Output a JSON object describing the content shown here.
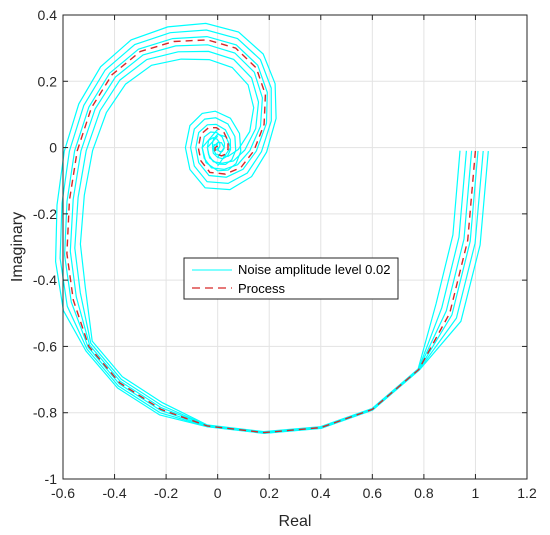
{
  "chart_data": {
    "type": "line",
    "xlabel": "Real",
    "ylabel": "Imaginary",
    "xlim": [
      -0.6,
      1.2
    ],
    "ylim": [
      -1,
      0.4
    ],
    "grid": true,
    "legend_position": "center",
    "xticks": [
      "-0.6",
      "-0.4",
      "-0.2",
      "0",
      "0.2",
      "0.4",
      "0.6",
      "0.8",
      "1",
      "1.2"
    ],
    "yticks": [
      "-1",
      "-0.8",
      "-0.6",
      "-0.4",
      "-0.2",
      "0",
      "0.2",
      "0.4"
    ],
    "series": [
      {
        "name": "Noise amplitude level 0.02",
        "color": "#00FFFF",
        "style": "solid",
        "description_points": "spiral band around the process curve, wider on inner loops",
        "band_offsets": [
          -0.06,
          -0.035,
          -0.015,
          0.01,
          0.03,
          0.05
        ]
      },
      {
        "name": "Process",
        "color": "#D62728",
        "style": "dashed",
        "points": [
          [
            1.0,
            -0.01
          ],
          [
            0.97,
            -0.28
          ],
          [
            0.9,
            -0.5
          ],
          [
            0.78,
            -0.67
          ],
          [
            0.6,
            -0.79
          ],
          [
            0.4,
            -0.845
          ],
          [
            0.18,
            -0.86
          ],
          [
            -0.04,
            -0.84
          ],
          [
            -0.22,
            -0.79
          ],
          [
            -0.38,
            -0.71
          ],
          [
            -0.5,
            -0.6
          ],
          [
            -0.56,
            -0.46
          ],
          [
            -0.585,
            -0.32
          ],
          [
            -0.575,
            -0.16
          ],
          [
            -0.545,
            -0.01
          ],
          [
            -0.49,
            0.12
          ],
          [
            -0.41,
            0.22
          ],
          [
            -0.3,
            0.29
          ],
          [
            -0.17,
            0.32
          ],
          [
            -0.04,
            0.325
          ],
          [
            0.07,
            0.3
          ],
          [
            0.15,
            0.24
          ],
          [
            0.185,
            0.16
          ],
          [
            0.18,
            0.07
          ],
          [
            0.14,
            -0.01
          ],
          [
            0.09,
            -0.06
          ],
          [
            0.03,
            -0.08
          ],
          [
            -0.03,
            -0.075
          ],
          [
            -0.065,
            -0.04
          ],
          [
            -0.075,
            0.0
          ],
          [
            -0.065,
            0.04
          ],
          [
            -0.035,
            0.06
          ],
          [
            -0.005,
            0.06
          ],
          [
            0.025,
            0.045
          ],
          [
            0.04,
            0.02
          ],
          [
            0.04,
            -0.005
          ],
          [
            0.03,
            -0.02
          ],
          [
            0.015,
            -0.025
          ],
          [
            0.0,
            -0.02
          ],
          [
            -0.01,
            -0.01
          ],
          [
            -0.01,
            0.0
          ],
          [
            0.0,
            0.005
          ]
        ]
      }
    ]
  }
}
